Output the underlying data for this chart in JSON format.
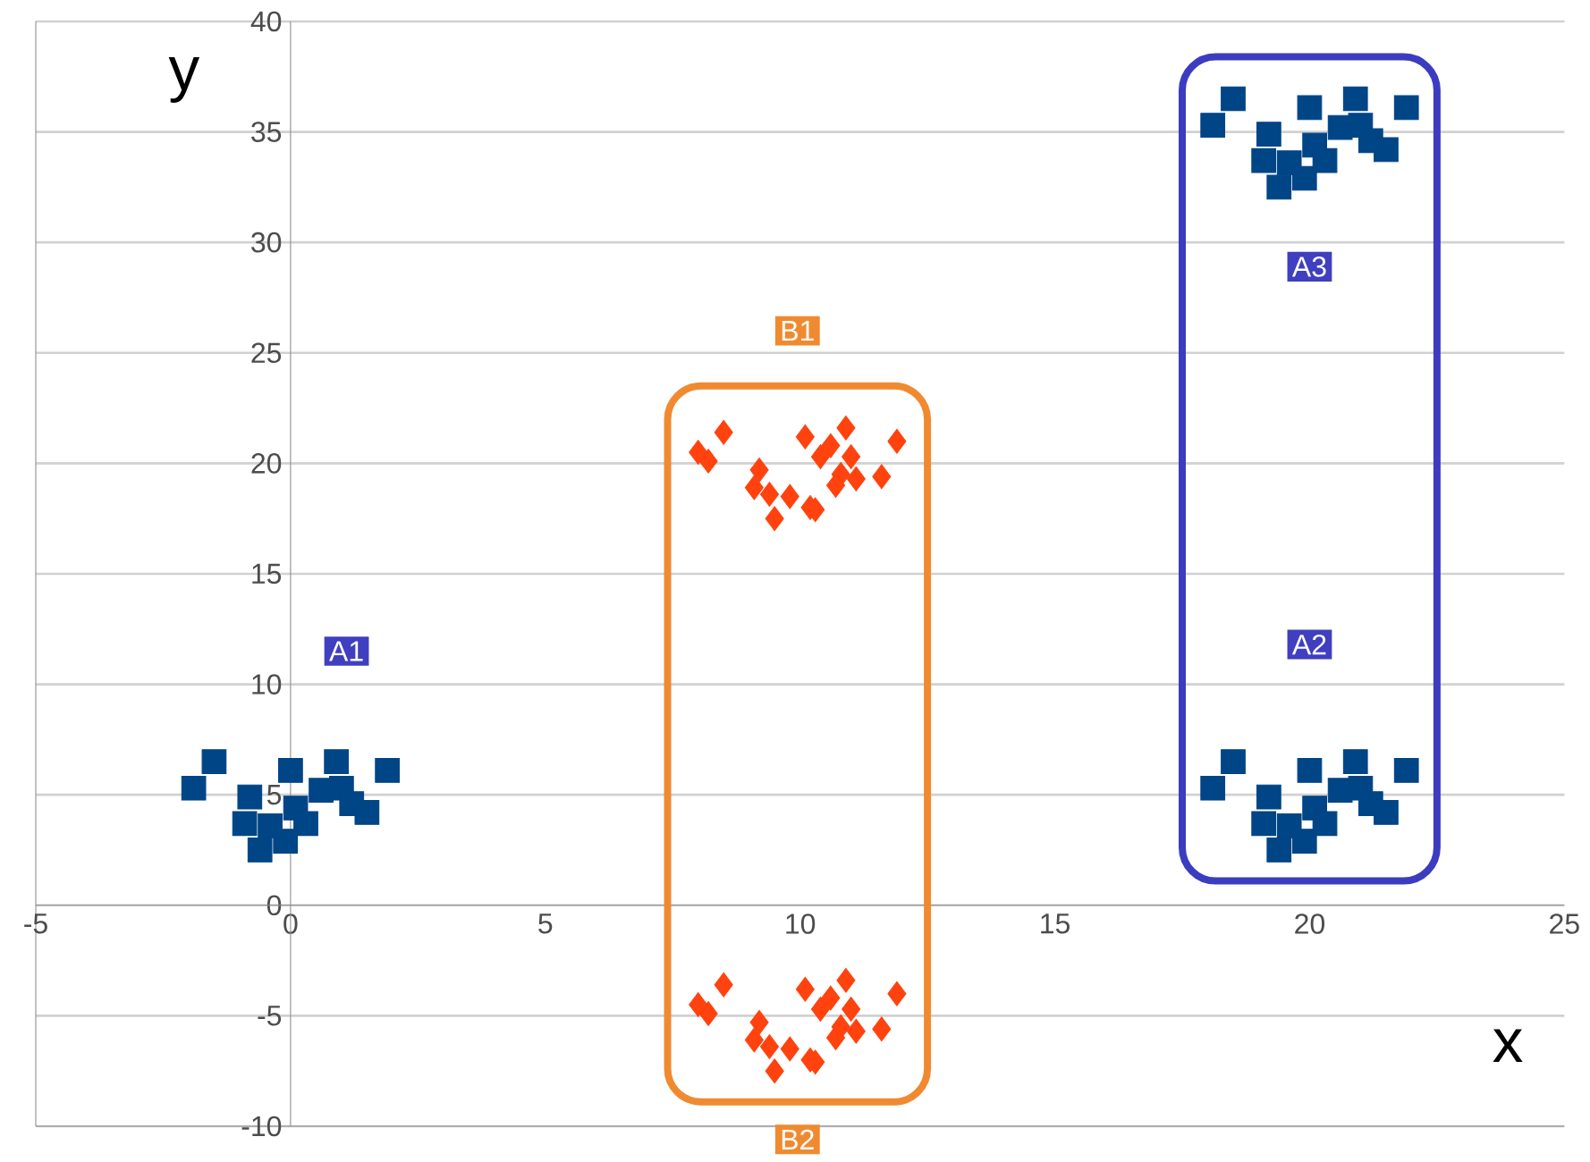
{
  "chart_data": {
    "type": "scatter",
    "xlabel": "x",
    "ylabel": "y",
    "xlim": [
      -5,
      25
    ],
    "ylim": [
      -10,
      40
    ],
    "xticks": [
      -5,
      0,
      5,
      10,
      15,
      20,
      25
    ],
    "yticks": [
      -10,
      -5,
      0,
      5,
      10,
      15,
      20,
      25,
      30,
      35,
      40
    ],
    "grid": "y",
    "series": [
      {
        "color": "#004586",
        "marker": "square",
        "x": [
          -1.5,
          -1.9,
          -0.8,
          -0.9,
          -0.6,
          -0.4,
          0.0,
          0.1,
          -0.1,
          0.3,
          0.6,
          0.9,
          1.0,
          1.2,
          1.5,
          1.9
        ],
        "values": [
          6.5,
          5.3,
          4.9,
          3.7,
          2.5,
          3.6,
          6.1,
          4.4,
          2.9,
          3.7,
          5.2,
          6.5,
          5.3,
          4.6,
          4.2,
          6.1
        ]
      },
      {
        "color": "#004586",
        "marker": "square",
        "x": [
          18.5,
          18.1,
          19.2,
          19.1,
          19.4,
          19.6,
          20.0,
          20.1,
          19.9,
          20.3,
          20.6,
          20.9,
          21.0,
          21.2,
          21.5,
          21.9
        ],
        "values": [
          6.5,
          5.3,
          4.9,
          3.7,
          2.5,
          3.6,
          6.1,
          4.4,
          2.9,
          3.7,
          5.2,
          6.5,
          5.3,
          4.6,
          4.2,
          6.1
        ]
      },
      {
        "color": "#004586",
        "marker": "square",
        "x": [
          18.5,
          18.1,
          19.2,
          19.1,
          19.4,
          19.6,
          20.0,
          20.1,
          19.9,
          20.3,
          20.6,
          20.9,
          21.0,
          21.2,
          21.5,
          21.9
        ],
        "values": [
          36.5,
          35.3,
          34.9,
          33.7,
          32.5,
          33.6,
          36.1,
          34.4,
          32.9,
          33.7,
          35.2,
          36.5,
          35.3,
          34.6,
          34.2,
          36.1
        ]
      },
      {
        "color": "#ff420e",
        "marker": "diamond",
        "x": [
          8.5,
          8.0,
          8.2,
          9.2,
          9.1,
          9.4,
          9.5,
          9.8,
          10.2,
          10.3,
          10.1,
          10.4,
          10.6,
          10.8,
          10.9,
          11.0,
          11.1,
          11.6,
          11.9,
          10.7
        ],
        "values": [
          21.4,
          20.5,
          20.1,
          19.7,
          18.9,
          18.6,
          17.5,
          18.5,
          18.0,
          17.9,
          21.2,
          20.3,
          20.8,
          19.5,
          21.6,
          20.3,
          19.3,
          19.4,
          21.0,
          19.0
        ]
      },
      {
        "color": "#ff420e",
        "marker": "diamond",
        "x": [
          8.5,
          8.0,
          8.2,
          9.2,
          9.1,
          9.4,
          9.5,
          9.8,
          10.2,
          10.3,
          10.1,
          10.4,
          10.6,
          10.8,
          10.9,
          11.0,
          11.1,
          11.6,
          11.9,
          10.7
        ],
        "values": [
          -3.6,
          -4.5,
          -4.9,
          -5.3,
          -6.1,
          -6.4,
          -7.5,
          -6.5,
          -7.0,
          -7.1,
          -3.8,
          -4.7,
          -4.2,
          -5.5,
          -3.4,
          -4.7,
          -5.7,
          -5.6,
          -4.0,
          -6.0
        ]
      }
    ],
    "annotations": [
      "A1",
      "A2",
      "A3",
      "B1",
      "B2"
    ]
  }
}
